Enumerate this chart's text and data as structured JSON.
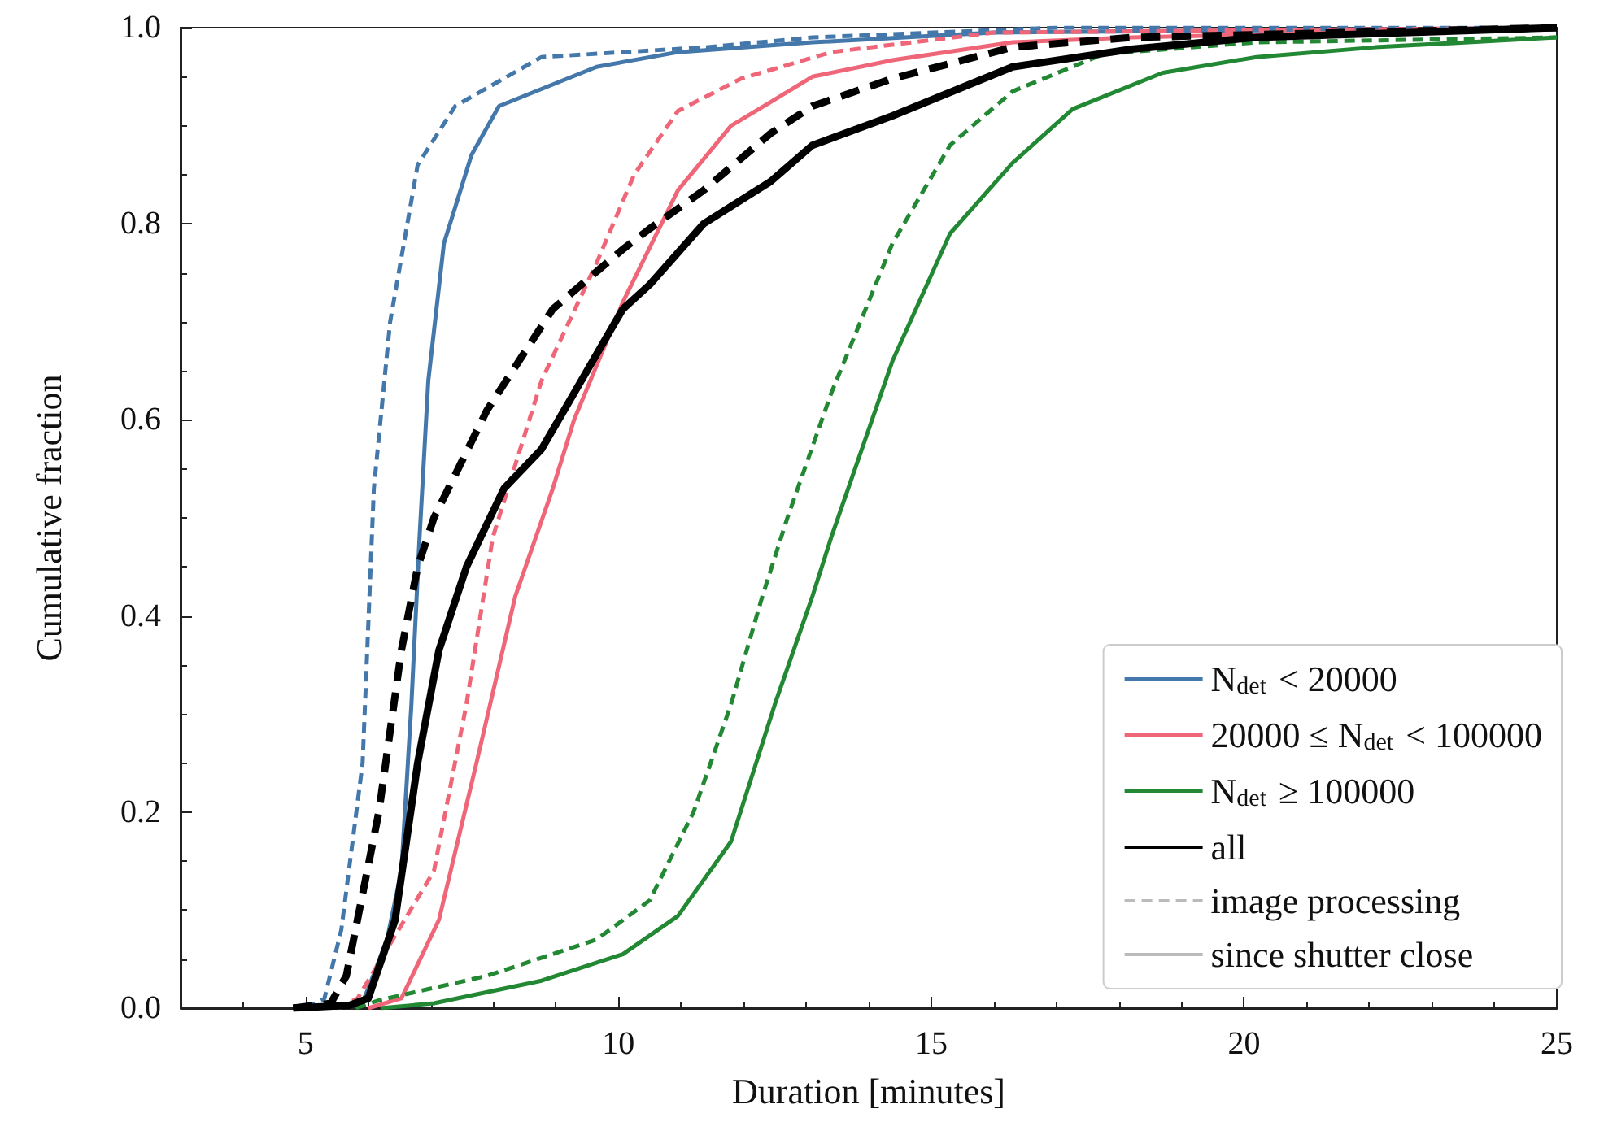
{
  "chart_data": {
    "type": "line",
    "xlabel": "Duration [minutes]",
    "ylabel": "Cumulative fraction",
    "xlim": [
      3,
      25
    ],
    "xticks": [
      5,
      10,
      15,
      20,
      25
    ],
    "ylim": [
      0,
      1
    ],
    "yticks": [
      {
        "value": 0,
        "label": "0.0"
      },
      {
        "value": 0.2,
        "label": "0.2"
      },
      {
        "value": 0.4,
        "label": "0.4"
      },
      {
        "value": 0.6,
        "label": "0.6"
      },
      {
        "value": 0.8,
        "label": "0.8"
      },
      {
        "value": 1,
        "label": "1.0"
      }
    ],
    "grid": false,
    "legend": "bottom right",
    "marker": "none",
    "series": [
      {
        "color": "#4477aa",
        "line_style": "dashed",
        "x": [
          5.0,
          5.3,
          5.57,
          5.91,
          6.09,
          6.35,
          6.79,
          7.39,
          8.77,
          11.4,
          13.1,
          17,
          25
        ],
        "values": [
          0,
          0.01,
          0.08,
          0.25,
          0.53,
          0.7,
          0.86,
          0.92,
          0.97,
          0.98,
          0.99,
          1.0,
          1.0
        ]
      },
      {
        "name": "N$_{det}$ < 20000",
        "color": "#4477aa",
        "line_style": "solid",
        "x": [
          5.5,
          5.9,
          6.0,
          6.3,
          6.53,
          6.69,
          6.82,
          6.96,
          7.21,
          7.65,
          8.09,
          9.65,
          10.95,
          13.1,
          16,
          25
        ],
        "values": [
          0,
          0.005,
          0.02,
          0.07,
          0.14,
          0.31,
          0.48,
          0.64,
          0.78,
          0.87,
          0.92,
          0.96,
          0.975,
          0.985,
          0.995,
          1.0
        ]
      },
      {
        "color": "#ee6677",
        "line_style": "dashed",
        "x": [
          5.5,
          5.83,
          7.05,
          7.57,
          7.99,
          8.77,
          9.65,
          10.25,
          10.95,
          11.96,
          13.4,
          16,
          25
        ],
        "values": [
          0,
          0.01,
          0.14,
          0.31,
          0.48,
          0.64,
          0.76,
          0.85,
          0.915,
          0.948,
          0.975,
          0.995,
          1.0
        ]
      },
      {
        "name": "20000 ≤ N$_{det}$ < 100000",
        "color": "#ee6677",
        "line_style": "solid",
        "x": [
          6.0,
          6.53,
          7.13,
          7.73,
          8.35,
          8.95,
          9.29,
          10.07,
          10.95,
          11.8,
          12.43,
          13.1,
          14.4,
          16.3,
          18.2,
          25
        ],
        "values": [
          0,
          0.01,
          0.09,
          0.25,
          0.42,
          0.53,
          0.6,
          0.72,
          0.834,
          0.9,
          0.924,
          0.95,
          0.967,
          0.985,
          0.99,
          1.0
        ]
      },
      {
        "color": "#228833",
        "line_style": "dashed",
        "x": [
          5.8,
          6.17,
          7.9,
          9.65,
          10.5,
          11.2,
          11.8,
          12.3,
          12.7,
          13.4,
          14.38,
          15.3,
          16.3,
          17.75,
          20.2,
          25
        ],
        "values": [
          0,
          0.008,
          0.033,
          0.07,
          0.11,
          0.2,
          0.31,
          0.42,
          0.5,
          0.627,
          0.78,
          0.88,
          0.935,
          0.973,
          0.985,
          0.99
        ]
      },
      {
        "name": "N$_{det}$ ≥ 100000",
        "color": "#228833",
        "line_style": "solid",
        "x": [
          6.2,
          7.05,
          8.77,
          10.07,
          10.95,
          11.8,
          12.5,
          13.1,
          13.4,
          14.38,
          15.3,
          16.3,
          17.26,
          18.7,
          20.2,
          22.1,
          25
        ],
        "values": [
          0,
          0.005,
          0.028,
          0.055,
          0.094,
          0.17,
          0.31,
          0.42,
          0.48,
          0.66,
          0.79,
          0.862,
          0.917,
          0.954,
          0.97,
          0.98,
          0.99
        ]
      },
      {
        "color": "#000000",
        "line_style": "dashed",
        "x": [
          4.8,
          5.4,
          5.65,
          6.17,
          6.53,
          6.79,
          7.05,
          7.9,
          8.95,
          10.07,
          10.5,
          11.36,
          12.43,
          13.1,
          14.38,
          16.3,
          18.2,
          25
        ],
        "values": [
          0,
          0.005,
          0.033,
          0.2,
          0.365,
          0.45,
          0.5,
          0.61,
          0.713,
          0.774,
          0.795,
          0.834,
          0.892,
          0.92,
          0.948,
          0.98,
          0.99,
          1.0
        ]
      },
      {
        "name": "all",
        "color": "#000000",
        "line_style": "solid",
        "x": [
          4.8,
          5.7,
          6.0,
          6.43,
          6.79,
          7.13,
          7.57,
          8.17,
          8.77,
          10.07,
          10.5,
          11.36,
          12.43,
          13.1,
          14.38,
          16.3,
          18.2,
          20.2,
          25
        ],
        "values": [
          0,
          0.003,
          0.01,
          0.09,
          0.25,
          0.365,
          0.45,
          0.53,
          0.57,
          0.713,
          0.738,
          0.8,
          0.843,
          0.88,
          0.91,
          0.96,
          0.978,
          0.99,
          1.0
        ]
      },
      {
        "name": "image processing",
        "color": "#bbbbbb",
        "line_style": "dashed"
      },
      {
        "name": "since shutter close",
        "color": "#bbbbbb",
        "line_style": "solid"
      }
    ]
  }
}
